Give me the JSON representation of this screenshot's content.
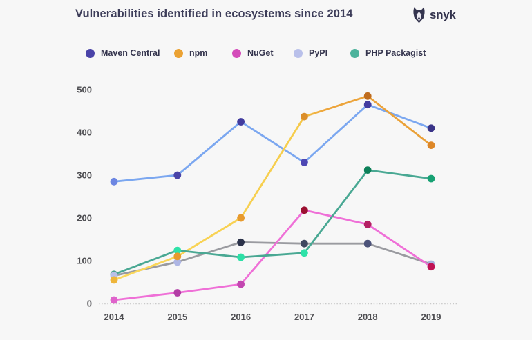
{
  "header": {
    "title": "Vulnerabilities identified in ecosystems since 2014",
    "brand": "snyk"
  },
  "colors": {
    "background": "#f7f7f7",
    "title_text": "#3e3e5a",
    "axis_line": "#c9c9c9",
    "tick_text": "#4e4e52"
  },
  "chart_data": {
    "type": "line",
    "title": "Vulnerabilities identified in ecosystems since 2014",
    "x": [
      2014,
      2015,
      2016,
      2017,
      2018,
      2019
    ],
    "xlabel": "",
    "ylabel": "",
    "ylim": [
      0,
      500
    ],
    "yticks": [
      0,
      100,
      200,
      300,
      400,
      500
    ],
    "grid": false,
    "legend_position": "top",
    "series": [
      {
        "name": "Maven Central",
        "legend_color": "#4a43a8",
        "line_color": "#7ba7f0",
        "marker_colors": [
          "#6c86e2",
          "#4a44a8",
          "#413b9e",
          "#4d47b4",
          "#423ca0",
          "#3a3488"
        ],
        "values": [
          285,
          300,
          425,
          330,
          465,
          410
        ]
      },
      {
        "name": "npm",
        "legend_color": "#eba233",
        "line_color": "#f6cb49",
        "line_gradient": [
          "#fbd95e",
          "#f6cd4c",
          "#eda53c",
          "#e99f36"
        ],
        "marker_colors": [
          "#eeb53a",
          "#e79a2d",
          "#e79a2d",
          "#db8e2a",
          "#bf6c1e",
          "#dd8728"
        ],
        "values": [
          55,
          110,
          200,
          437,
          485,
          370
        ]
      },
      {
        "name": "NuGet",
        "legend_color": "#d44cba",
        "line_color": "#ef70d7",
        "marker_colors": [
          "#df63cb",
          "#b23da5",
          "#c247b0",
          "#9c1031",
          "#b51f63",
          "#c01255"
        ],
        "values": [
          8,
          25,
          45,
          218,
          185,
          86
        ]
      },
      {
        "name": "PyPI",
        "legend_color": "#b9c0ea",
        "line_color": "#9a9ba0",
        "marker_colors": [
          "#b9c0e8",
          "#aeb6e4",
          "#2b3249",
          "#3f4760",
          "#4c537a",
          "#a9b1de"
        ],
        "values": [
          65,
          97,
          143,
          140,
          140,
          92
        ]
      },
      {
        "name": "PHP Packagist",
        "legend_color": "#4db39c",
        "line_color": "#49a893",
        "marker_colors": [
          "#4ba08e",
          "#2fe2a8",
          "#2ce0a6",
          "#2de2a8",
          "#0d8059",
          "#17a173"
        ],
        "values": [
          68,
          124,
          108,
          118,
          312,
          292
        ]
      }
    ]
  }
}
